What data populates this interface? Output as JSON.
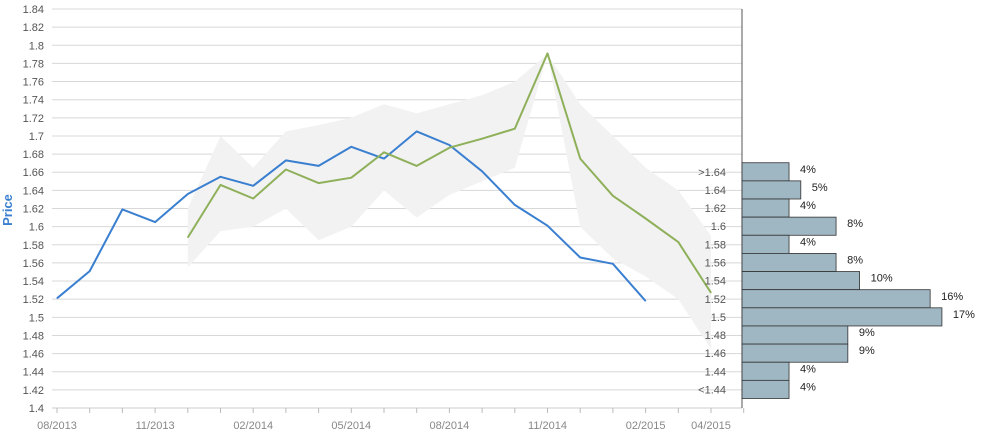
{
  "colors": {
    "actual": "#3a7fd0",
    "forecast": "#8fb05a",
    "band": "#f2f2f2",
    "bars": "#9fb6c3",
    "bar_stroke": "#333333",
    "grid": "#d8d8d8",
    "ylabel": "#3a7fd0"
  },
  "chart_data": {
    "type": "line",
    "ylabel": "Price",
    "ylim": [
      1.4,
      1.84
    ],
    "yticks": [
      "1.4",
      "1.42",
      "1.44",
      "1.46",
      "1.48",
      "1.5",
      "1.52",
      "1.54",
      "1.56",
      "1.58",
      "1.6",
      "1.62",
      "1.64",
      "1.66",
      "1.68",
      "1.7",
      "1.72",
      "1.74",
      "1.76",
      "1.78",
      "1.8",
      "1.82",
      "1.84"
    ],
    "x_labels": [
      "08/2013",
      "11/2013",
      "02/2014",
      "05/2014",
      "08/2014",
      "11/2014",
      "02/2015",
      "04/2015"
    ],
    "grid": true,
    "series": [
      {
        "key": "actual",
        "x": [
          "08/2013",
          "09/2013",
          "10/2013",
          "11/2013",
          "12/2013",
          "01/2014",
          "02/2014",
          "03/2014",
          "04/2014",
          "05/2014",
          "06/2014",
          "07/2014",
          "08/2014",
          "09/2014",
          "10/2014",
          "11/2014",
          "12/2014",
          "01/2015",
          "02/2015"
        ],
        "values": [
          1.521,
          1.551,
          1.619,
          1.605,
          1.636,
          1.655,
          1.645,
          1.673,
          1.667,
          1.688,
          1.675,
          1.705,
          1.69,
          1.661,
          1.624,
          1.601,
          1.566,
          1.559,
          1.518
        ]
      },
      {
        "key": "forecast",
        "x": [
          "12/2013",
          "01/2014",
          "02/2014",
          "03/2014",
          "04/2014",
          "05/2014",
          "06/2014",
          "07/2014",
          "08/2014",
          "09/2014",
          "10/2014",
          "11/2014",
          "12/2014",
          "01/2015",
          "02/2015",
          "03/2015",
          "04/2015"
        ],
        "values": [
          1.588,
          1.646,
          1.631,
          1.663,
          1.648,
          1.654,
          1.682,
          1.667,
          1.687,
          1.697,
          1.708,
          1.791,
          1.675,
          1.634,
          1.609,
          1.583,
          1.527
        ]
      }
    ],
    "band": {
      "x": [
        "12/2013",
        "01/2014",
        "02/2014",
        "03/2014",
        "04/2014",
        "05/2014",
        "06/2014",
        "07/2014",
        "08/2014",
        "09/2014",
        "10/2014",
        "11/2014",
        "12/2014",
        "01/2015",
        "02/2015",
        "03/2015",
        "04/2015"
      ],
      "upper": [
        1.62,
        1.7,
        1.665,
        1.705,
        1.712,
        1.72,
        1.735,
        1.725,
        1.735,
        1.745,
        1.76,
        1.79,
        1.735,
        1.7,
        1.665,
        1.64,
        1.59
      ],
      "lower": [
        1.555,
        1.595,
        1.6,
        1.62,
        1.585,
        1.6,
        1.64,
        1.61,
        1.635,
        1.65,
        1.665,
        1.79,
        1.6,
        1.565,
        1.545,
        1.52,
        1.465
      ]
    },
    "distribution": {
      "categories": [
        ">1.64",
        "1.64",
        "1.62",
        "1.6",
        "1.58",
        "1.56",
        "1.54",
        "1.52",
        "1.5",
        "1.48",
        "1.46",
        "1.44",
        "<1.44"
      ],
      "percent": [
        4,
        5,
        4,
        8,
        4,
        8,
        10,
        16,
        17,
        9,
        9,
        4,
        4
      ],
      "labels": [
        "4%",
        "5%",
        "4%",
        "8%",
        "4%",
        "8%",
        "10%",
        "16%",
        "17%",
        "9%",
        "9%",
        "4%",
        "4%"
      ]
    }
  }
}
